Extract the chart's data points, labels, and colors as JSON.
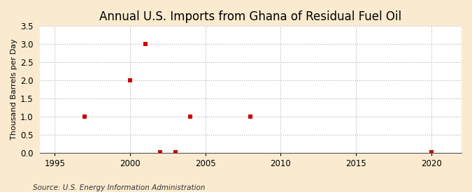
{
  "title": "Annual U.S. Imports from Ghana of Residual Fuel Oil",
  "ylabel": "Thousand Barrels per Day",
  "source_text": "Source: U.S. Energy Information Administration",
  "figure_bg_color": "#faebd0",
  "plot_bg_color": "#ffffff",
  "data_points": [
    [
      1997,
      1.0
    ],
    [
      2000,
      2.0
    ],
    [
      2001,
      3.0
    ],
    [
      2002,
      0.02
    ],
    [
      2003,
      0.02
    ],
    [
      2004,
      1.0
    ],
    [
      2008,
      1.0
    ],
    [
      2020,
      0.02
    ]
  ],
  "marker_color": "#cc0000",
  "marker_size": 4,
  "marker_style": "s",
  "xlim": [
    1994,
    2022
  ],
  "ylim": [
    0,
    3.5
  ],
  "yticks": [
    0.0,
    0.5,
    1.0,
    1.5,
    2.0,
    2.5,
    3.0,
    3.5
  ],
  "xticks": [
    1995,
    2000,
    2005,
    2010,
    2015,
    2020
  ],
  "grid_color": "#b0b0b0",
  "grid_linestyle": ":",
  "grid_linewidth": 0.8,
  "title_fontsize": 12,
  "axis_label_fontsize": 8,
  "tick_fontsize": 8.5,
  "source_fontsize": 7.5
}
